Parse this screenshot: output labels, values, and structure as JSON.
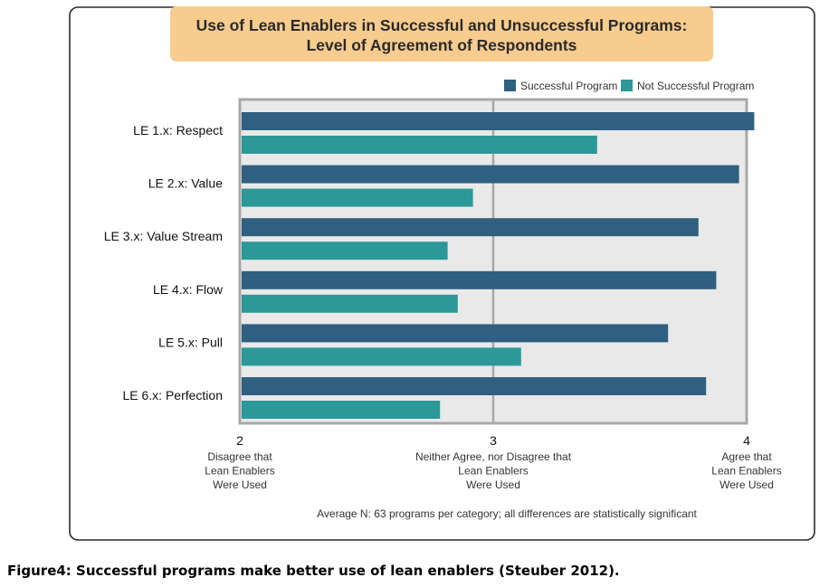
{
  "caption": "Figure4: Successful programs make better use of lean enablers (Steuber 2012).",
  "chart_data": {
    "type": "bar",
    "orientation": "horizontal",
    "title_lines": [
      "Use of Lean Enablers in Successful and Unsuccessful Programs:",
      "Level of Agreement of Respondents"
    ],
    "categories": [
      "LE 1.x: Respect",
      "LE 2.x: Value",
      "LE 3.x: Value Stream",
      "LE 4.x: Flow",
      "LE 5.x: Pull",
      "LE 6.x: Perfection"
    ],
    "series": [
      {
        "name": "Successful Program",
        "values": [
          4.03,
          3.97,
          3.81,
          3.88,
          3.69,
          3.84
        ]
      },
      {
        "name": "Not Successful Program",
        "values": [
          3.41,
          2.92,
          2.82,
          2.86,
          3.11,
          2.79
        ]
      }
    ],
    "xlim": [
      2,
      4
    ],
    "ticks": [
      {
        "value": 2,
        "label": "2",
        "desc": [
          "Disagree that",
          "Lean Enablers",
          "Were Used"
        ]
      },
      {
        "value": 3,
        "label": "3",
        "desc": [
          "Neither Agree, nor Disagree that",
          "Lean Enablers",
          "Were Used"
        ]
      },
      {
        "value": 4,
        "label": "4",
        "desc": [
          "Agree that",
          "Lean Enablers",
          "Were Used"
        ]
      }
    ],
    "note": "Average N: 63 programs per category; all differences are statistically significant",
    "legend_position": "top-right",
    "grid": true,
    "colors": {
      "successful": "#2f6080",
      "not_successful": "#2c9898",
      "title_bg": "#f8cc8e",
      "plot_bg": "#e9e9ea",
      "axis": "#a8a8a8"
    }
  }
}
